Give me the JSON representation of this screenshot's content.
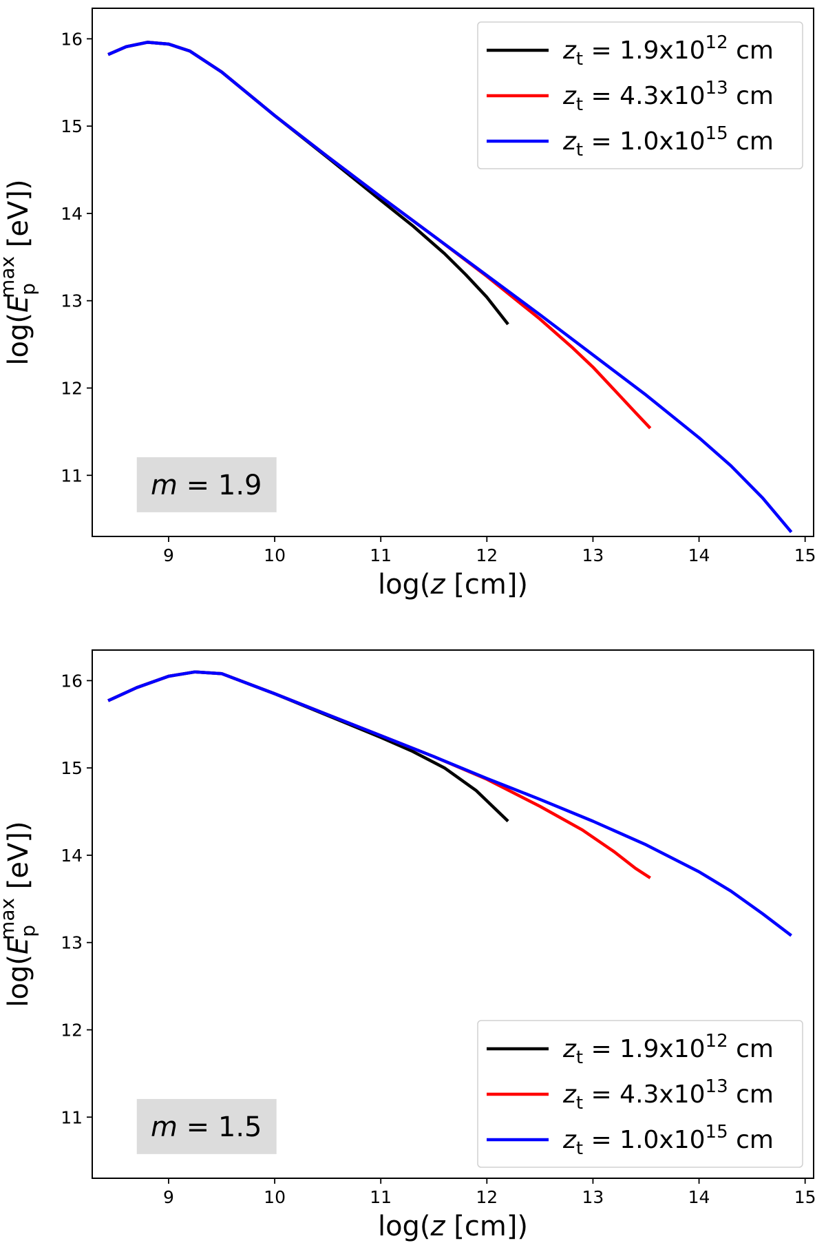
{
  "chart_data": [
    {
      "type": "line",
      "xlabel": "log(z [cm])",
      "ylabel": "log(E_p^max [eV])",
      "xlim": [
        8.28,
        15.08
      ],
      "ylim": [
        10.3,
        16.35
      ],
      "xticks": [
        9,
        10,
        11,
        12,
        13,
        14,
        15
      ],
      "yticks": [
        11,
        12,
        13,
        14,
        15,
        16
      ],
      "legend_position": "top-right",
      "annotation": {
        "symbol": "m",
        "value": "1.9"
      },
      "series": [
        {
          "name": "z_t = 1.9x10^12 cm",
          "color": "#000000",
          "x": [
            8.43,
            8.6,
            8.8,
            9.0,
            9.2,
            9.5,
            10.0,
            10.5,
            11.0,
            11.3,
            11.6,
            11.8,
            12.0,
            12.2
          ],
          "y": [
            15.82,
            15.91,
            15.96,
            15.94,
            15.86,
            15.62,
            15.12,
            14.64,
            14.15,
            13.86,
            13.54,
            13.3,
            13.04,
            12.73
          ]
        },
        {
          "name": "z_t = 4.3x10^13 cm",
          "color": "#ff0000",
          "x": [
            8.43,
            8.6,
            8.8,
            9.0,
            9.2,
            9.5,
            10.0,
            10.5,
            11.0,
            11.5,
            12.0,
            12.5,
            12.8,
            13.0,
            13.2,
            13.4,
            13.54
          ],
          "y": [
            15.82,
            15.91,
            15.96,
            15.94,
            15.86,
            15.62,
            15.12,
            14.65,
            14.19,
            13.74,
            13.28,
            12.79,
            12.47,
            12.24,
            11.98,
            11.72,
            11.54
          ]
        },
        {
          "name": "z_t = 1.0x10^15 cm",
          "color": "#0000ff",
          "x": [
            8.43,
            8.6,
            8.8,
            9.0,
            9.2,
            9.5,
            10.0,
            10.5,
            11.0,
            11.5,
            12.0,
            12.5,
            13.0,
            13.5,
            14.0,
            14.3,
            14.6,
            14.87
          ],
          "y": [
            15.82,
            15.91,
            15.96,
            15.94,
            15.86,
            15.62,
            15.12,
            14.65,
            14.19,
            13.74,
            13.29,
            12.84,
            12.38,
            11.92,
            11.43,
            11.11,
            10.74,
            10.35
          ]
        }
      ]
    },
    {
      "type": "line",
      "xlabel": "log(z [cm])",
      "ylabel": "log(E_p^max [eV])",
      "xlim": [
        8.28,
        15.08
      ],
      "ylim": [
        10.3,
        16.35
      ],
      "xticks": [
        9,
        10,
        11,
        12,
        13,
        14,
        15
      ],
      "yticks": [
        11,
        12,
        13,
        14,
        15,
        16
      ],
      "legend_position": "bottom-right",
      "annotation": {
        "symbol": "m",
        "value": "1.5"
      },
      "series": [
        {
          "name": "z_t = 1.9x10^12 cm",
          "color": "#000000",
          "x": [
            8.43,
            8.7,
            9.0,
            9.25,
            9.5,
            10.0,
            10.5,
            11.0,
            11.3,
            11.6,
            11.9,
            12.2
          ],
          "y": [
            15.77,
            15.92,
            16.05,
            16.1,
            16.08,
            15.85,
            15.6,
            15.35,
            15.19,
            15.0,
            14.74,
            14.39
          ]
        },
        {
          "name": "z_t = 4.3x10^13 cm",
          "color": "#ff0000",
          "x": [
            8.43,
            8.7,
            9.0,
            9.25,
            9.5,
            10.0,
            10.5,
            11.0,
            11.5,
            12.0,
            12.5,
            12.9,
            13.2,
            13.4,
            13.54
          ],
          "y": [
            15.77,
            15.92,
            16.05,
            16.1,
            16.08,
            15.85,
            15.61,
            15.37,
            15.13,
            14.87,
            14.56,
            14.29,
            14.04,
            13.85,
            13.74
          ]
        },
        {
          "name": "z_t = 1.0x10^15 cm",
          "color": "#0000ff",
          "x": [
            8.43,
            8.7,
            9.0,
            9.25,
            9.5,
            10.0,
            10.5,
            11.0,
            11.5,
            12.0,
            12.5,
            13.0,
            13.5,
            14.0,
            14.3,
            14.6,
            14.87
          ],
          "y": [
            15.77,
            15.92,
            16.05,
            16.1,
            16.08,
            15.85,
            15.61,
            15.37,
            15.13,
            14.88,
            14.64,
            14.39,
            14.12,
            13.81,
            13.59,
            13.33,
            13.08
          ]
        }
      ]
    }
  ]
}
